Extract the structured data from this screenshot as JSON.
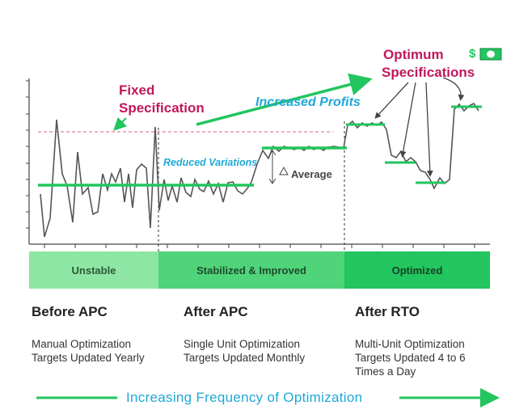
{
  "callouts": {
    "fixed_spec_line1": "Fixed",
    "fixed_spec_line2": "Specification",
    "increased_profits": "Increased Profits",
    "reduced_variations": "Reduced Variations",
    "average": "Average",
    "optimum_line1": "Optimum",
    "optimum_line2": "Specifications",
    "dollar_sign": "$"
  },
  "stages": [
    {
      "bar_label": "Unstable",
      "title": "Before APC",
      "desc": [
        "Manual Optimization",
        "Targets Updated Yearly"
      ]
    },
    {
      "bar_label": "Stabilized & Improved",
      "title": "After APC",
      "desc": [
        "Single Unit Optimization",
        "Targets Updated Monthly"
      ]
    },
    {
      "bar_label": "Optimized",
      "title": "After RTO",
      "desc": [
        "Multi-Unit Optimization",
        "Targets Updated 4 to 6",
        "Times a Day"
      ]
    }
  ],
  "footer": {
    "label": "Increasing Frequency of Optimization"
  },
  "colors": {
    "green_line": "#22c55e",
    "bar_light": "#8ee6a4",
    "bar_mid": "#4fd47a",
    "bar_dark": "#22c55e",
    "accent_red": "#c2185b",
    "accent_blue": "#1fa8d8"
  },
  "chart_data": {
    "type": "line",
    "series": [
      {
        "values": [
          0.45,
          0.65,
          0.3,
          0.7,
          0.25,
          0.15,
          0.5,
          0.8,
          0.4,
          0.15,
          0.45,
          0.55,
          0.2,
          0.45,
          0.4,
          0.5,
          0.58,
          0.65,
          0.7,
          0.82,
          0.8,
          0.82,
          0.8,
          0.82,
          0.8,
          0.83,
          0.8,
          0.78,
          0.95,
          0.93,
          0.92,
          0.93,
          0.9,
          0.92,
          0.95,
          0.93,
          0.92,
          0.94,
          0.92,
          0.93
        ]
      }
    ]
  }
}
